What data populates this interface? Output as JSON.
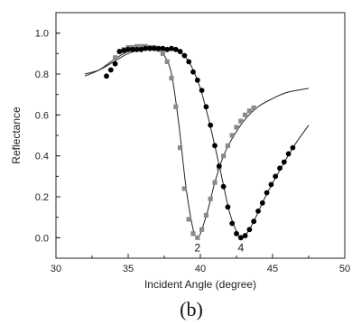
{
  "chart_data": {
    "type": "scatter",
    "xlabel": "Incident Angle (degree)",
    "ylabel": "Reflectance",
    "xlim": [
      30,
      50
    ],
    "ylim": [
      -0.1,
      1.1
    ],
    "x_ticks": [
      30,
      35,
      40,
      45,
      50
    ],
    "y_ticks": [
      0.0,
      0.2,
      0.4,
      0.6,
      0.8,
      1.0
    ],
    "x_tick_labels": [
      "30",
      "35",
      "40",
      "45",
      "50"
    ],
    "y_tick_labels": [
      "0.0",
      "0.2",
      "0.4",
      "0.6",
      "0.8",
      "1.0"
    ],
    "grid": false,
    "caption": "(b)",
    "series": [
      {
        "name": "2",
        "marker": "square",
        "color": "#8a8a8a",
        "points": [
          [
            34.1,
            0.88
          ],
          [
            34.4,
            0.91
          ],
          [
            34.7,
            0.92
          ],
          [
            35.0,
            0.93
          ],
          [
            35.3,
            0.93
          ],
          [
            35.6,
            0.935
          ],
          [
            35.9,
            0.935
          ],
          [
            36.2,
            0.935
          ],
          [
            36.5,
            0.93
          ],
          [
            36.8,
            0.93
          ],
          [
            37.1,
            0.92
          ],
          [
            37.4,
            0.9
          ],
          [
            37.7,
            0.86
          ],
          [
            38.0,
            0.78
          ],
          [
            38.3,
            0.64
          ],
          [
            38.6,
            0.44
          ],
          [
            38.9,
            0.24
          ],
          [
            39.2,
            0.09
          ],
          [
            39.5,
            0.02
          ],
          [
            39.8,
            0.0
          ],
          [
            40.1,
            0.04
          ],
          [
            40.4,
            0.11
          ],
          [
            40.7,
            0.19
          ],
          [
            41.0,
            0.27
          ],
          [
            41.3,
            0.34
          ],
          [
            41.6,
            0.4
          ],
          [
            41.9,
            0.45
          ],
          [
            42.2,
            0.5
          ],
          [
            42.5,
            0.54
          ],
          [
            42.8,
            0.57
          ],
          [
            43.1,
            0.6
          ],
          [
            43.4,
            0.62
          ],
          [
            43.7,
            0.635
          ]
        ],
        "fit": [
          [
            32.0,
            0.79
          ],
          [
            33.0,
            0.82
          ],
          [
            34.0,
            0.87
          ],
          [
            35.0,
            0.91
          ],
          [
            36.0,
            0.925
          ],
          [
            37.0,
            0.915
          ],
          [
            37.5,
            0.89
          ],
          [
            38.0,
            0.8
          ],
          [
            38.5,
            0.56
          ],
          [
            39.0,
            0.25
          ],
          [
            39.5,
            0.04
          ],
          [
            39.8,
            0.005
          ],
          [
            40.0,
            0.02
          ],
          [
            40.5,
            0.13
          ],
          [
            41.0,
            0.27
          ],
          [
            41.5,
            0.38
          ],
          [
            42.0,
            0.46
          ],
          [
            43.0,
            0.57
          ],
          [
            44.0,
            0.64
          ],
          [
            45.0,
            0.68
          ],
          [
            46.0,
            0.71
          ],
          [
            47.5,
            0.73
          ]
        ]
      },
      {
        "name": "4",
        "marker": "circle",
        "color": "#000000",
        "points": [
          [
            33.5,
            0.79
          ],
          [
            33.8,
            0.82
          ],
          [
            34.1,
            0.85
          ],
          [
            34.4,
            0.91
          ],
          [
            34.7,
            0.915
          ],
          [
            35.0,
            0.92
          ],
          [
            35.3,
            0.92
          ],
          [
            35.6,
            0.92
          ],
          [
            35.9,
            0.92
          ],
          [
            36.2,
            0.925
          ],
          [
            36.5,
            0.925
          ],
          [
            36.8,
            0.925
          ],
          [
            37.1,
            0.925
          ],
          [
            37.4,
            0.925
          ],
          [
            37.7,
            0.92
          ],
          [
            38.0,
            0.925
          ],
          [
            38.3,
            0.92
          ],
          [
            38.6,
            0.91
          ],
          [
            38.9,
            0.89
          ],
          [
            39.2,
            0.86
          ],
          [
            39.5,
            0.81
          ],
          [
            39.8,
            0.77
          ],
          [
            40.1,
            0.72
          ],
          [
            40.4,
            0.64
          ],
          [
            40.7,
            0.55
          ],
          [
            41.0,
            0.45
          ],
          [
            41.3,
            0.35
          ],
          [
            41.6,
            0.25
          ],
          [
            41.9,
            0.15
          ],
          [
            42.2,
            0.07
          ],
          [
            42.5,
            0.02
          ],
          [
            42.8,
            0.0
          ],
          [
            43.1,
            0.01
          ],
          [
            43.4,
            0.04
          ],
          [
            43.7,
            0.08
          ],
          [
            44.0,
            0.13
          ],
          [
            44.3,
            0.17
          ],
          [
            44.6,
            0.22
          ],
          [
            44.9,
            0.26
          ],
          [
            45.2,
            0.3
          ],
          [
            45.5,
            0.34
          ],
          [
            45.8,
            0.37
          ],
          [
            46.1,
            0.41
          ],
          [
            46.4,
            0.44
          ]
        ],
        "fit": [
          [
            32.0,
            0.8
          ],
          [
            33.0,
            0.82
          ],
          [
            34.0,
            0.86
          ],
          [
            35.0,
            0.9
          ],
          [
            36.0,
            0.92
          ],
          [
            37.0,
            0.925
          ],
          [
            38.0,
            0.92
          ],
          [
            38.5,
            0.91
          ],
          [
            39.0,
            0.88
          ],
          [
            39.5,
            0.82
          ],
          [
            40.0,
            0.73
          ],
          [
            40.5,
            0.6
          ],
          [
            41.0,
            0.45
          ],
          [
            41.5,
            0.29
          ],
          [
            42.0,
            0.13
          ],
          [
            42.5,
            0.03
          ],
          [
            42.8,
            0.005
          ],
          [
            43.2,
            0.02
          ],
          [
            43.7,
            0.08
          ],
          [
            44.5,
            0.2
          ],
          [
            45.5,
            0.33
          ],
          [
            46.5,
            0.45
          ],
          [
            47.5,
            0.55
          ]
        ]
      }
    ]
  }
}
